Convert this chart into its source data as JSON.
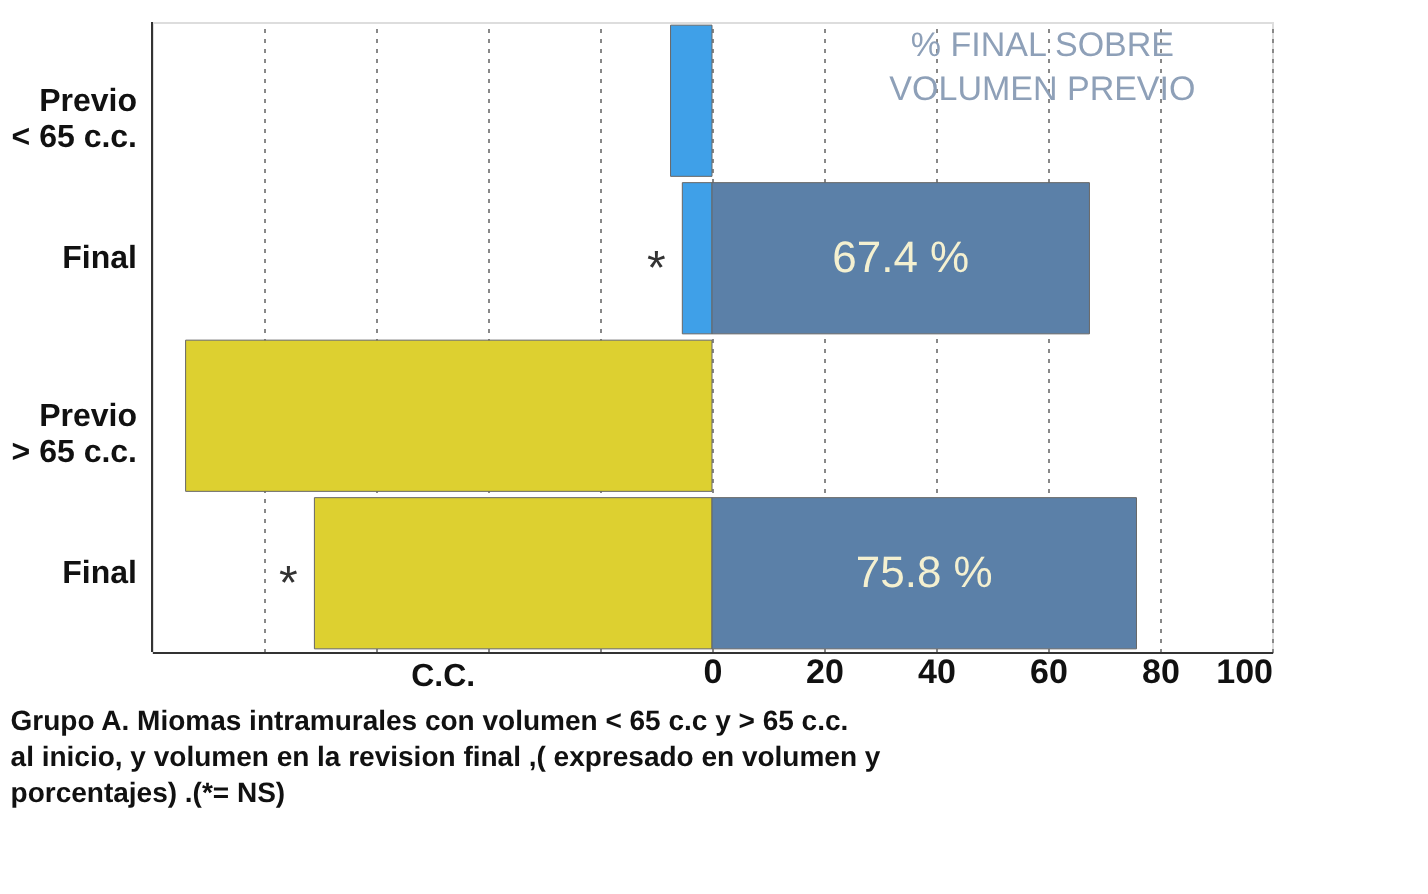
{
  "chart_data": {
    "type": "bar",
    "orientation": "horizontal",
    "stacked": true,
    "categories": [
      "Previo\n< 65 c.c.",
      "Final",
      "Previo\n> 65 c.c.",
      "Final"
    ],
    "series": [
      {
        "colors": [
          "#3fa0e8",
          "#3fa0e8",
          "#ddd030",
          "#ddd030"
        ],
        "values": [
          -7.4,
          -5.3,
          -94,
          -71
        ]
      },
      {
        "name": "% FINAL SOBRE\nVOLUMEN PREVIO",
        "color": "#5b80a8",
        "values": [
          null,
          67.4,
          null,
          75.8
        ],
        "value_labels": [
          null,
          "67.4 %",
          null,
          "75.8 %"
        ]
      }
    ],
    "xlabel": "C.C.",
    "xlim": [
      -100,
      100
    ],
    "xticks": [
      {
        "value": -80,
        "label": null
      },
      {
        "value": -60,
        "label": null
      },
      {
        "value": -40,
        "label": null
      },
      {
        "value": -20,
        "label": null
      },
      0,
      20,
      40,
      60,
      80,
      100
    ],
    "grid": "x",
    "annotations": [
      {
        "text": "*",
        "x": -5.3,
        "y": "Final"
      },
      {
        "text": "*",
        "x": -71
      },
      "Grupo A. Miomas  intramurales con volumen  < 65 c.c y > 65 c.c.\nal inicio, y  volumen en la revision final ,( expresado en volumen y\nporcentajes) .(*= NS)"
    ]
  }
}
